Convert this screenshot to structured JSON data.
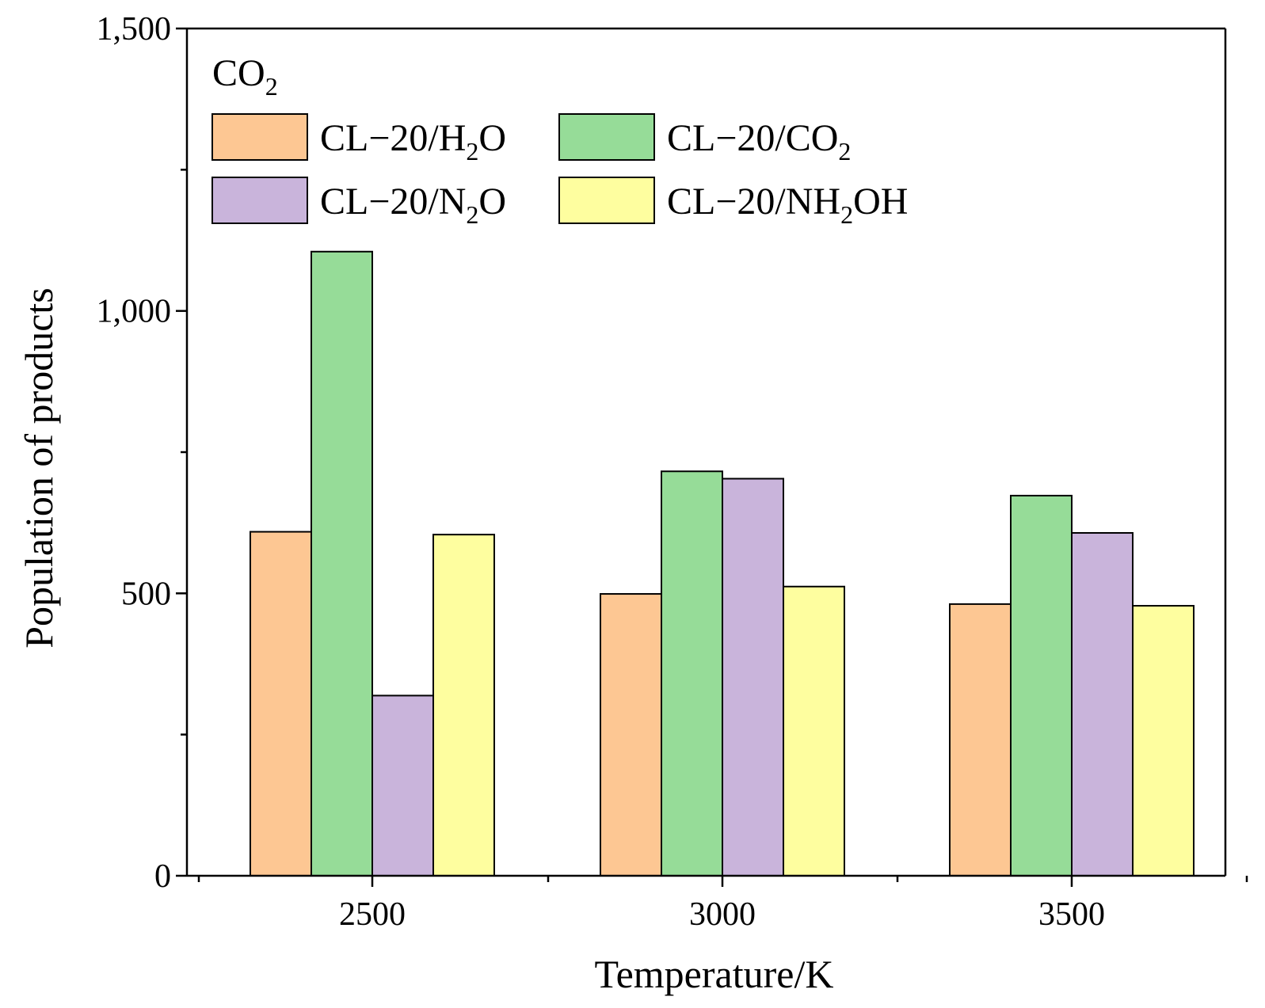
{
  "chart_data": {
    "type": "bar",
    "title": "",
    "annotation": {
      "base": "CO",
      "sub": "2"
    },
    "xlabel": "Temperature/K",
    "ylabel": "Population of products",
    "categories": [
      "2500",
      "3000",
      "3500"
    ],
    "ylim": [
      0,
      1500
    ],
    "yticks": [
      0,
      500,
      1000,
      1500
    ],
    "ytick_labels": [
      "0",
      "500",
      "1,000",
      "1,500"
    ],
    "legend_position": "top-left",
    "series": [
      {
        "name": "CL−20/H2O",
        "label_parts": {
          "pre": "CL−20/H",
          "sub": "2",
          "post": "O"
        },
        "color": "#FDC793",
        "values": [
          609,
          499,
          481
        ]
      },
      {
        "name": "CL−20/CO2",
        "label_parts": {
          "pre": "CL−20/CO",
          "sub": "2",
          "post": ""
        },
        "color": "#96DC98",
        "values": [
          1105,
          716,
          673
        ]
      },
      {
        "name": "CL−20/N2O",
        "label_parts": {
          "pre": "CL−20/N",
          "sub": "2",
          "post": "O"
        },
        "color": "#C9B4DB",
        "values": [
          319,
          703,
          607
        ]
      },
      {
        "name": "CL−20/NH2OH",
        "label_parts": {
          "pre": "CL−20/NH",
          "sub": "2",
          "post": "OH"
        },
        "color": "#FEFE9F",
        "values": [
          604,
          512,
          478
        ]
      }
    ]
  }
}
